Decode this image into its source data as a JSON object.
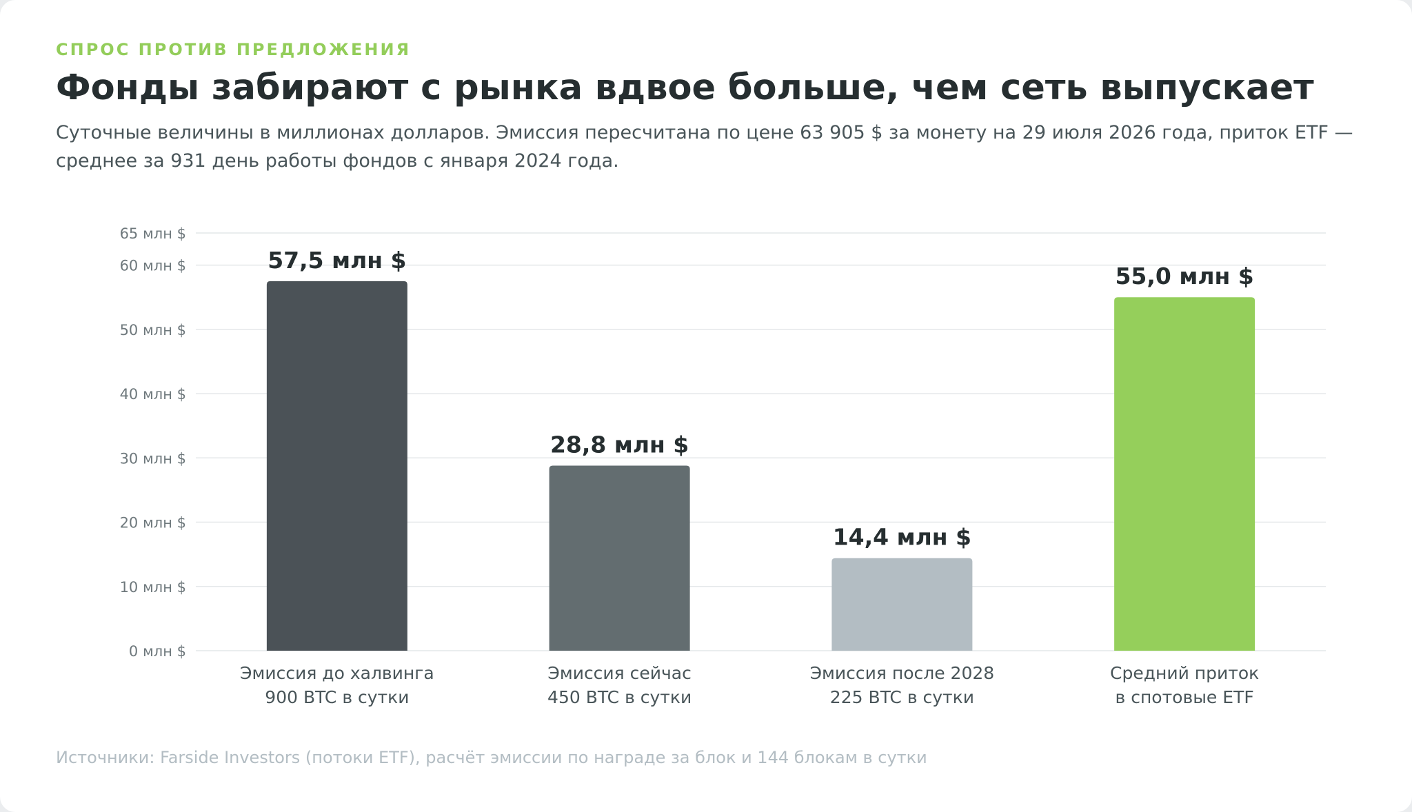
{
  "kicker": "СПРОС ПРОТИВ ПРЕДЛОЖЕНИЯ",
  "title": "Фонды забирают с рынка вдвое больше, чем сеть выпускает",
  "subtitle": "Суточные величины в миллионах долларов. Эмиссия пересчитана по цене 63 905 $ за монету на 29 июля 2026 года, приток ETF — среднее за 931 день работы фондов с января 2024 года.",
  "source": "Источники: Farside Investors (потоки ETF), расчёт эмиссии по награде за блок и 144 блокам в сутки",
  "chart_data": {
    "type": "bar",
    "categories": [
      [
        "Эмиссия до халвинга",
        "900 BTC в сутки"
      ],
      [
        "Эмиссия сейчас",
        "450 BTC в сутки"
      ],
      [
        "Эмиссия после 2028",
        "225 BTC в сутки"
      ],
      [
        "Средний приток",
        "в спотовые ETF"
      ]
    ],
    "values": [
      57.5,
      28.8,
      14.4,
      55.0
    ],
    "data_labels": [
      "57,5 млн $",
      "28,8 млн $",
      "14,4 млн $",
      "55,0 млн $"
    ],
    "colors": [
      "#4b5257",
      "#636d70",
      "#b3bdc3",
      "#95cf5b"
    ],
    "yticks": [
      0,
      10,
      20,
      30,
      40,
      50,
      60,
      65
    ],
    "ytick_labels": [
      "0 млн $",
      "10 млн $",
      "20 млн $",
      "30 млн $",
      "40 млн $",
      "50 млн $",
      "60 млн $",
      "65 млн $"
    ],
    "ylim": [
      0,
      65
    ],
    "grid": true,
    "gridline_color": "#e4e7e9"
  }
}
